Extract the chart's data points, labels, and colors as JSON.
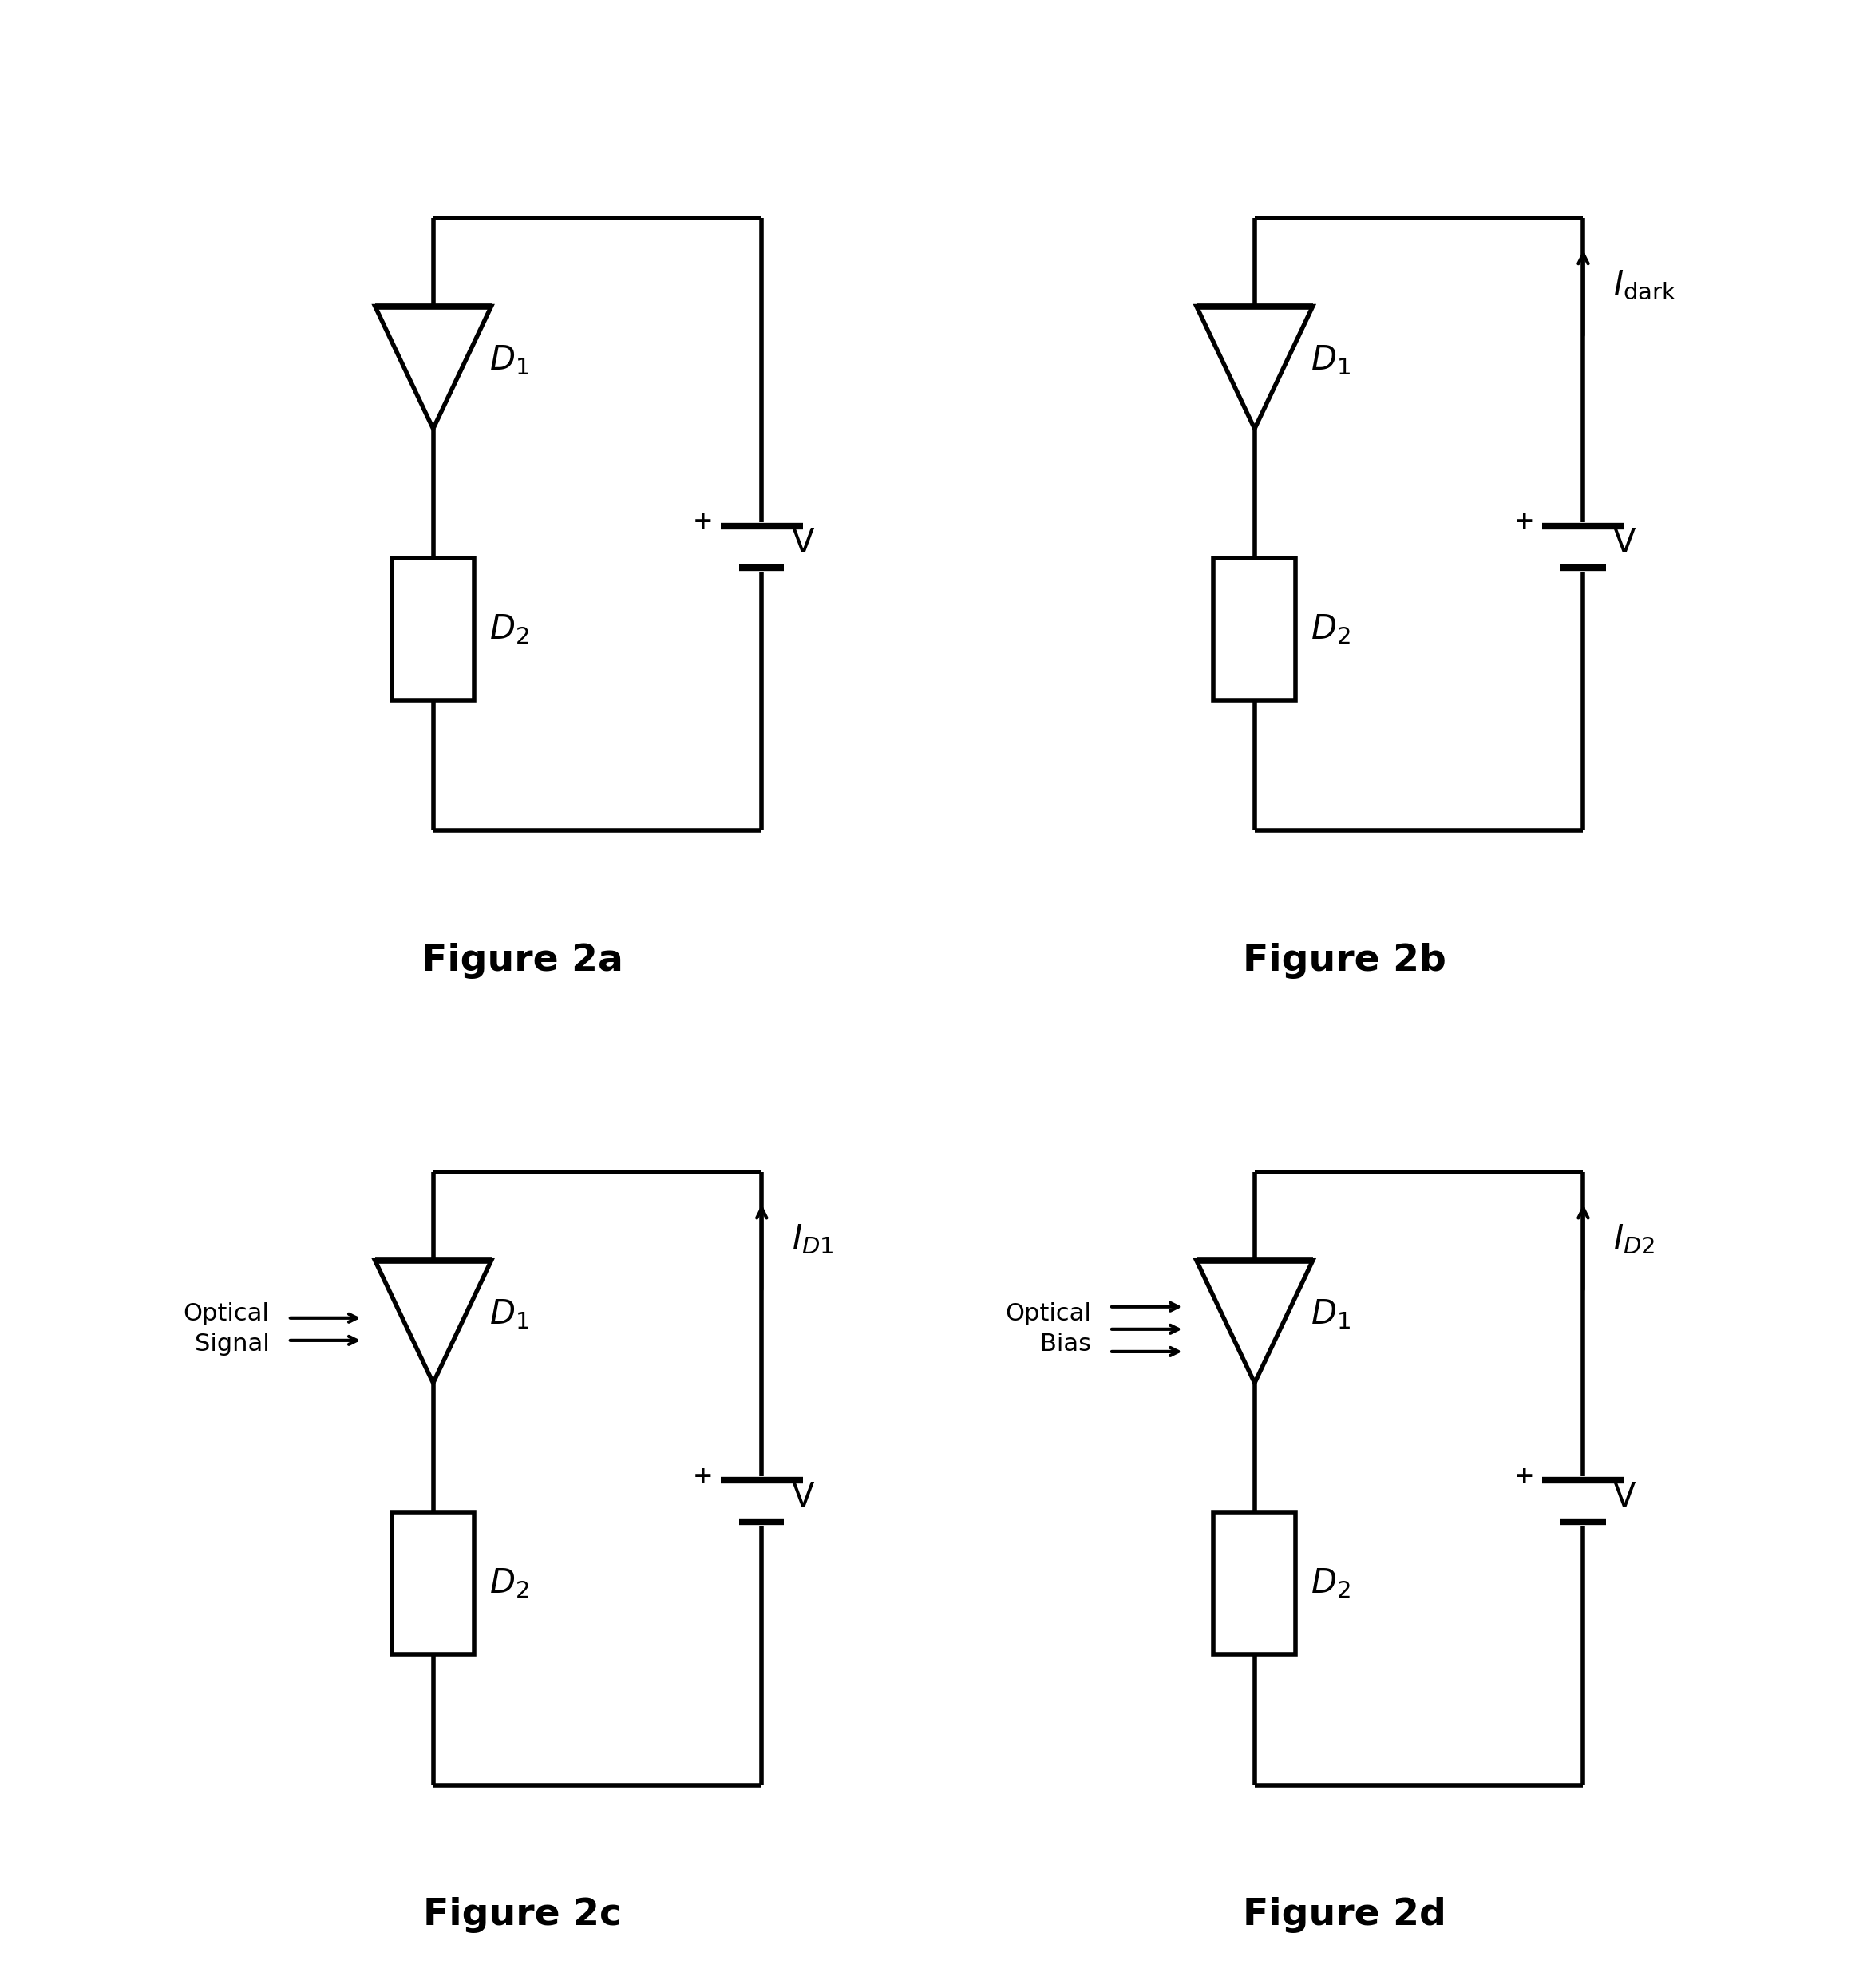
{
  "figures": [
    "Figure 2a",
    "Figure 2b",
    "Figure 2c",
    "Figure 2d"
  ],
  "fig_width": 23.39,
  "fig_height": 24.9,
  "bg_color": "#ffffff",
  "line_color": "#000000",
  "line_width": 4.0,
  "font_size_label": 30,
  "font_size_sub": 22,
  "font_size_fig": 34,
  "has_optical_signal": [
    false,
    false,
    true,
    true
  ],
  "has_current_arrow": [
    false,
    true,
    true,
    true
  ],
  "current_labels": [
    "",
    "I_dark",
    "I_D1",
    "I_D2"
  ],
  "optical_labels": [
    "",
    "",
    "Optical\nSignal",
    "Optical\nBias"
  ],
  "optical_lines": [
    0,
    0,
    2,
    3
  ]
}
